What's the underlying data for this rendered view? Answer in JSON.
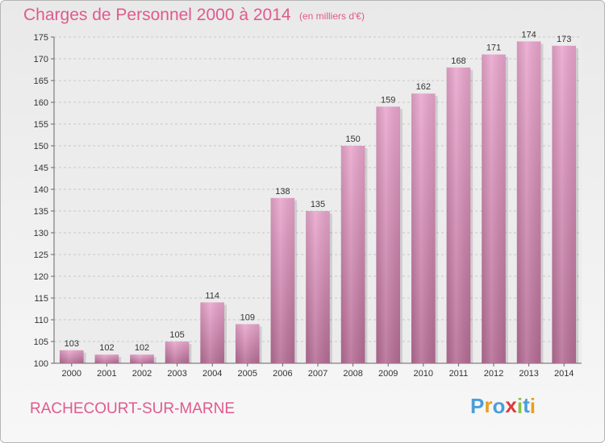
{
  "header": {
    "title": "Charges de Personnel 2000 à 2014",
    "subtitle": "(en milliers d'€)"
  },
  "footer": {
    "commune": "RACHECOURT-SUR-MARNE",
    "logo_letters": [
      "P",
      "r",
      "o",
      "x",
      "i",
      "t",
      "i"
    ],
    "logo_colors": [
      "#4a9fd8",
      "#e8a020",
      "#4a9fd8",
      "#e03a3a",
      "#8bc34a",
      "#4a9fd8",
      "#e8a020"
    ]
  },
  "chart_data": {
    "type": "bar",
    "categories": [
      "2000",
      "2001",
      "2002",
      "2003",
      "2004",
      "2005",
      "2006",
      "2007",
      "2008",
      "2009",
      "2010",
      "2011",
      "2012",
      "2013",
      "2014"
    ],
    "values": [
      103,
      102,
      102,
      105,
      114,
      109,
      138,
      135,
      150,
      159,
      162,
      168,
      171,
      174,
      173
    ],
    "ylim": [
      100,
      175
    ],
    "yticks": [
      100,
      105,
      110,
      115,
      120,
      125,
      130,
      135,
      140,
      145,
      150,
      155,
      160,
      165,
      170,
      175
    ],
    "grid": true,
    "bar_color": "#d27aa9"
  }
}
